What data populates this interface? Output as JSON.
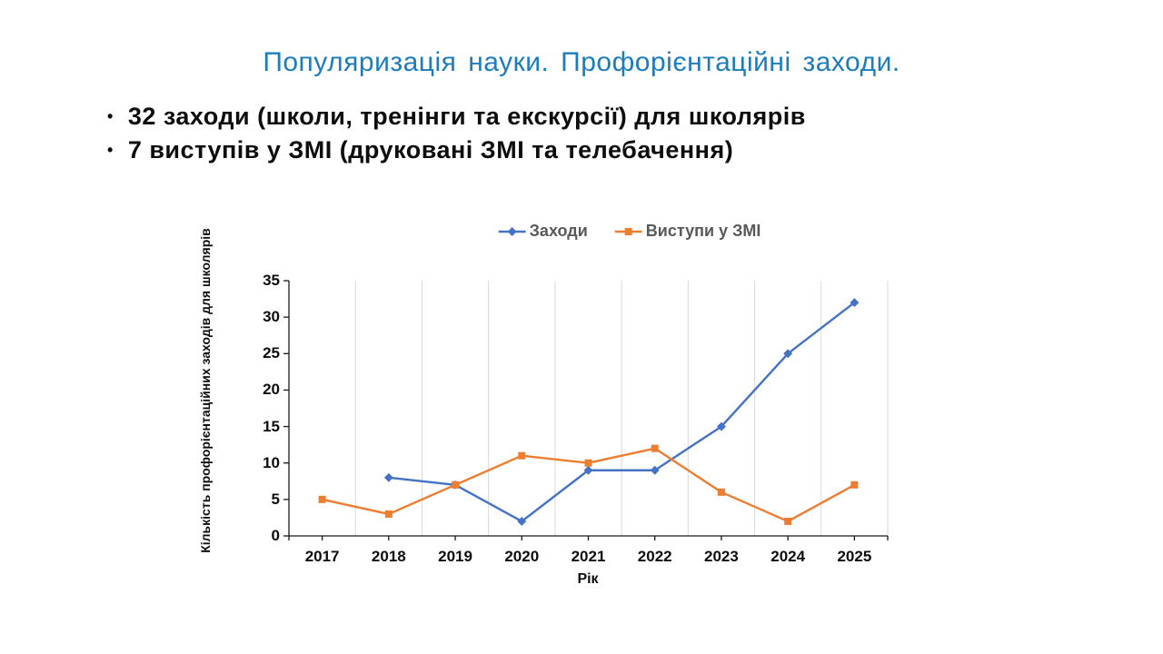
{
  "slide": {
    "title": "Популяризація науки. Профорієнтаційні заходи.",
    "title_color": "#1B7CBE",
    "bullet_glyph": "•",
    "bullets": [
      "32 заходи (школи, тренінги та екскурсії) для школярів",
      "7 виступів у ЗМІ (друковані ЗМІ та телебачення)"
    ]
  },
  "chart_data": {
    "type": "line",
    "title": "",
    "categories": [
      "2017",
      "2018",
      "2019",
      "2020",
      "2021",
      "2022",
      "2023",
      "2024",
      "2025"
    ],
    "series": [
      {
        "name": "Заходи",
        "color": "#4472C4",
        "marker": "diamond",
        "values": [
          null,
          8,
          7,
          2,
          9,
          9,
          15,
          25,
          32
        ]
      },
      {
        "name": "Виступи у ЗМІ",
        "color": "#ED7D31",
        "marker": "square",
        "values": [
          5,
          3,
          7,
          11,
          10,
          12,
          6,
          2,
          7
        ]
      }
    ],
    "xlabel": "Рік",
    "ylabel": "Кількість профорієнтаційних заходів для школярів",
    "ylim": [
      0,
      35
    ],
    "ytick_step": 5,
    "legend_position": "top-center",
    "grid": "vertical-only",
    "gridline_color": "#D9D9D9",
    "axis_color": "#1a1a1a",
    "tick_label_color": "#0d0d0d",
    "legend_text_color": "#595959",
    "background": "#ffffff"
  }
}
